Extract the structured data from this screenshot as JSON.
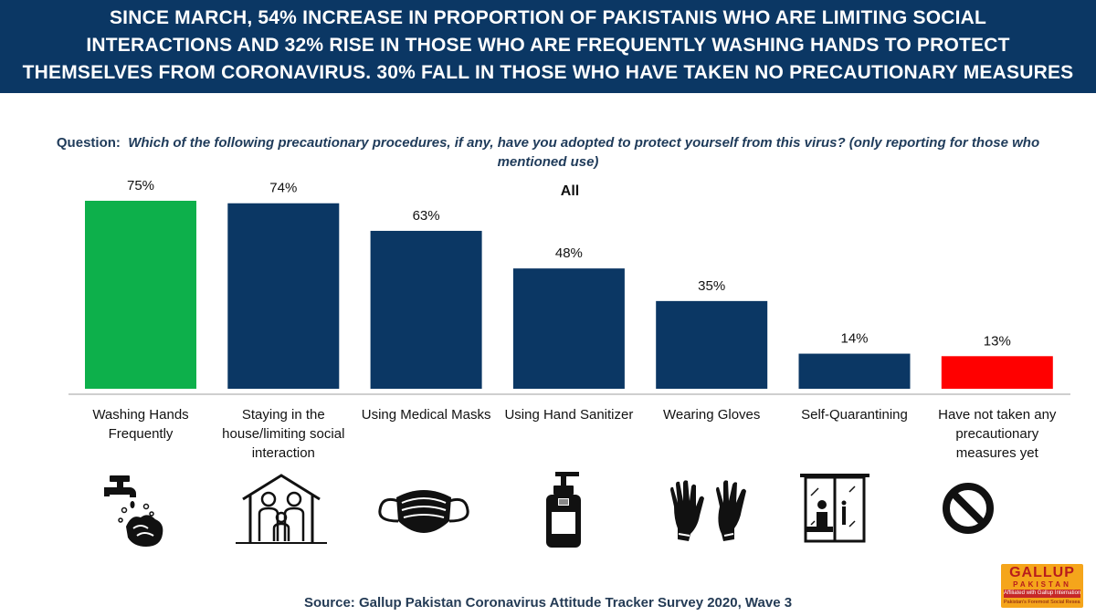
{
  "header": {
    "lines": [
      "SINCE MARCH, 54% INCREASE IN PROPORTION OF PAKISTANIS WHO ARE LIMITING SOCIAL",
      "INTERACTIONS AND 32% RISE IN THOSE WHO ARE FREQUENTLY WASHING HANDS TO PROTECT",
      "THEMSELVES FROM CORONAVIRUS. 30% FALL IN THOSE WHO HAVE TAKEN NO PRECAUTIONARY MEASURES"
    ]
  },
  "question": {
    "label": "Question:",
    "text": "Which of the following precautionary procedures, if any, have you adopted to protect yourself from this virus? (only reporting for those who mentioned use)"
  },
  "chart_data": {
    "type": "bar",
    "title": "All",
    "categories": [
      "Washing Hands Frequently",
      "Staying in the house/limiting social interaction",
      "Using Medical Masks",
      "Using Hand Sanitizer",
      "Wearing Gloves",
      "Self-Quarantining",
      "Have not taken any precautionary measures yet"
    ],
    "values": [
      75,
      74,
      63,
      48,
      35,
      14,
      13
    ],
    "value_labels": [
      "75%",
      "74%",
      "63%",
      "48%",
      "35%",
      "14%",
      "13%"
    ],
    "colors": [
      "#0db04b",
      "#0b3764",
      "#0b3764",
      "#0b3764",
      "#0b3764",
      "#0b3764",
      "#ff0000"
    ],
    "ylim": [
      0,
      75
    ],
    "xlabel": "",
    "ylabel": "",
    "grid": false
  },
  "icons": [
    "washing-hands",
    "family-in-house",
    "medical-mask",
    "hand-sanitizer",
    "gloves",
    "self-quarantine",
    "prohibited"
  ],
  "source": "Source: Gallup Pakistan Coronavirus Attitude Tracker Survey 2020, Wave 3",
  "logo": {
    "name": "GALLUP",
    "country": "PAKISTAN",
    "affiliation": "Affiliated with Gallup International",
    "tagline": "Pakistan's Foremost Social Research Lab"
  }
}
